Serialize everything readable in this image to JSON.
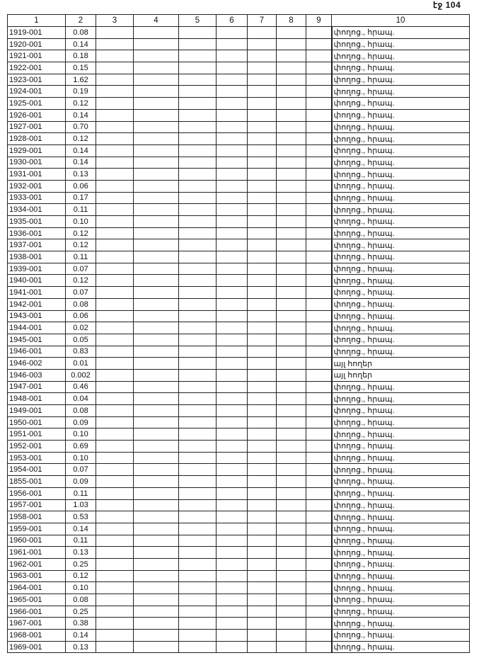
{
  "page_label": "էջ 104",
  "table": {
    "headers": [
      "1",
      "2",
      "3",
      "4",
      "5",
      "6",
      "7",
      "8",
      "9",
      "10"
    ],
    "rows": [
      [
        "1919-001",
        "0.08",
        "փողոց., հրապ."
      ],
      [
        "1920-001",
        "0.14",
        "փողոց., հրապ."
      ],
      [
        "1921-001",
        "0.18",
        "փողոց., հրապ."
      ],
      [
        "1922-001",
        "0.15",
        "փողոց., հրապ."
      ],
      [
        "1923-001",
        "1.62",
        "փողոց., հրապ."
      ],
      [
        "1924-001",
        "0.19",
        "փողոց., հրապ."
      ],
      [
        "1925-001",
        "0.12",
        "փողոց., հրապ."
      ],
      [
        "1926-001",
        "0.14",
        "փողոց., հրապ."
      ],
      [
        "1927-001",
        "0.70",
        "փողոց., հրապ."
      ],
      [
        "1928-001",
        "0.12",
        "փողոց., հրապ."
      ],
      [
        "1929-001",
        "0.14",
        "փողոց., հրապ."
      ],
      [
        "1930-001",
        "0.14",
        "փողոց., հրապ."
      ],
      [
        "1931-001",
        "0.13",
        "փողոց., հրապ."
      ],
      [
        "1932-001",
        "0.06",
        "փողոց., հրապ."
      ],
      [
        "1933-001",
        "0.17",
        "փողոց., հրապ."
      ],
      [
        "1934-001",
        "0.11",
        "փողոց., հրապ."
      ],
      [
        "1935-001",
        "0.10",
        "փողոց., հրապ."
      ],
      [
        "1936-001",
        "0.12",
        "փողոց., հրապ."
      ],
      [
        "1937-001",
        "0.12",
        "փողոց., հրապ."
      ],
      [
        "1938-001",
        "0.11",
        "փողոց., հրապ."
      ],
      [
        "1939-001",
        "0.07",
        "փողոց., հրապ."
      ],
      [
        "1940-001",
        "0.12",
        "փողոց., հրապ."
      ],
      [
        "1941-001",
        "0.07",
        "փողոց., հրապ."
      ],
      [
        "1942-001",
        "0.08",
        "փողոց., հրապ."
      ],
      [
        "1943-001",
        "0.06",
        "փողոց., հրապ."
      ],
      [
        "1944-001",
        "0.02",
        "փողոց., հրապ."
      ],
      [
        "1945-001",
        "0.05",
        "փողոց., հրապ."
      ],
      [
        "1946-001",
        "0.83",
        "փողոց., հրապ."
      ],
      [
        "1946-002",
        "0.01",
        "այլ հողեր"
      ],
      [
        "1946-003",
        "0.002",
        "այլ հողեր"
      ],
      [
        "1947-001",
        "0.46",
        "փողոց., հրապ."
      ],
      [
        "1948-001",
        "0.04",
        "փողոց., հրապ."
      ],
      [
        "1949-001",
        "0.08",
        "փողոց., հրապ."
      ],
      [
        "1950-001",
        "0.09",
        "փողոց., հրապ."
      ],
      [
        "1951-001",
        "0.10",
        "փողոց., հրապ."
      ],
      [
        "1952-001",
        "0.69",
        "փողոց., հրապ."
      ],
      [
        "1953-001",
        "0.10",
        "փողոց., հրապ."
      ],
      [
        "1954-001",
        "0.07",
        "փողոց., հրապ."
      ],
      [
        "1855-001",
        "0.09",
        "փողոց., հրապ."
      ],
      [
        "1956-001",
        "0.11",
        "փողոց., հրապ."
      ],
      [
        "1957-001",
        "1.03",
        "փողոց., հրապ."
      ],
      [
        "1958-001",
        "0.53",
        "փողոց., հրապ."
      ],
      [
        "1959-001",
        "0.14",
        "փողոց., հրապ."
      ],
      [
        "1960-001",
        "0.11",
        "փողոց., հրապ."
      ],
      [
        "1961-001",
        "0.13",
        "փողոց., հրապ."
      ],
      [
        "1962-001",
        "0.25",
        "փողոց., հրապ."
      ],
      [
        "1963-001",
        "0.12",
        "փողոց., հրապ."
      ],
      [
        "1964-001",
        "0.10",
        "փողոց., հրապ."
      ],
      [
        "1965-001",
        "0.08",
        "փողոց., հրապ."
      ],
      [
        "1966-001",
        "0.25",
        "փողոց., հրապ."
      ],
      [
        "1967-001",
        "0.38",
        "փողոց., հրապ."
      ],
      [
        "1968-001",
        "0.14",
        "փողոց., հրապ."
      ],
      [
        "1969-001",
        "0.13",
        "փողոց., հրապ."
      ]
    ]
  }
}
